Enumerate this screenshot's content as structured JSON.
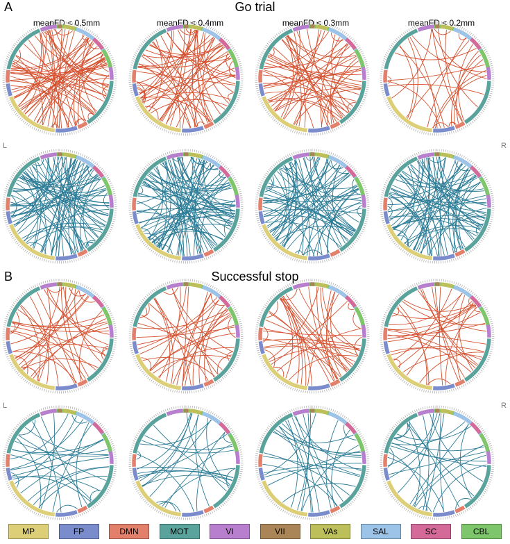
{
  "panels": [
    {
      "letter": "A",
      "title": "Go trial"
    },
    {
      "letter": "B",
      "title": "Successful stop"
    }
  ],
  "column_titles": [
    "meanFD < 0.5mm",
    "meanFD < 0.4mm",
    "meanFD < 0.3mm",
    "meanFD < 0.2mm"
  ],
  "side_labels": {
    "left": "L",
    "right": "R"
  },
  "link_colors": {
    "positive": "#d4502e",
    "negative": "#2a7b96"
  },
  "networks": [
    {
      "label": "MP",
      "color": "#dccf78"
    },
    {
      "label": "FP",
      "color": "#7b8ccc"
    },
    {
      "label": "DMN",
      "color": "#e3806c"
    },
    {
      "label": "MOT",
      "color": "#5aa39c"
    },
    {
      "label": "VI",
      "color": "#b87fcf"
    },
    {
      "label": "VII",
      "color": "#a98558"
    },
    {
      "label": "VAs",
      "color": "#bcbf5a"
    },
    {
      "label": "SAL",
      "color": "#9cc4e8"
    },
    {
      "label": "SC",
      "color": "#d46a9a"
    },
    {
      "label": "CBL",
      "color": "#7dc66b"
    }
  ]
}
